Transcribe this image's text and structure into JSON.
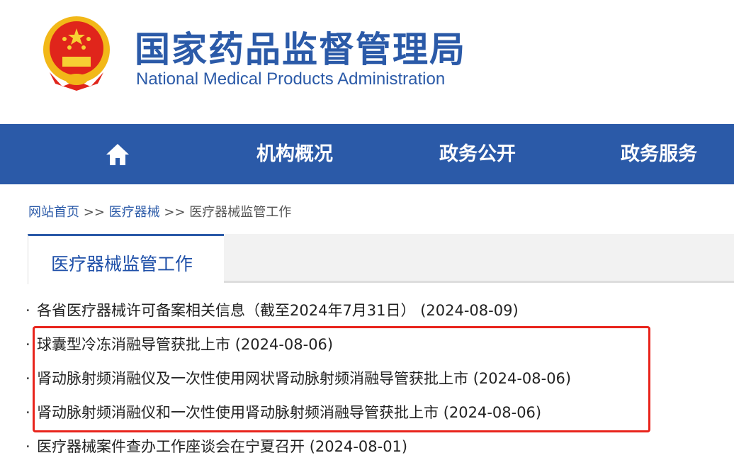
{
  "header": {
    "title_cn": "国家药品监督管理局",
    "title_en": "National Medical Products Administration"
  },
  "nav": {
    "items": [
      "机构概况",
      "政务公开",
      "政务服务"
    ]
  },
  "breadcrumb": {
    "home": "网站首页",
    "sep": ">>",
    "level1": "医疗器械",
    "current": "医疗器械监管工作"
  },
  "tab": {
    "label": "医疗器械监管工作"
  },
  "list": [
    {
      "title": "各省医疗器械许可备案相关信息（截至2024年7月31日）",
      "date": "(2024-08-09)"
    },
    {
      "title": "球囊型冷冻消融导管获批上市",
      "date": "(2024-08-06)"
    },
    {
      "title": "肾动脉射频消融仪及一次性使用网状肾动脉射频消融导管获批上市",
      "date": "(2024-08-06)"
    },
    {
      "title": "肾动脉射频消融仪和一次性使用肾动脉射频消融导管获批上市",
      "date": "(2024-08-06)"
    },
    {
      "title": "医疗器械案件查办工作座谈会在宁夏召开",
      "date": "(2024-08-01)"
    }
  ],
  "colors": {
    "brand": "#2b5aa8",
    "highlight": "#e8241c"
  }
}
